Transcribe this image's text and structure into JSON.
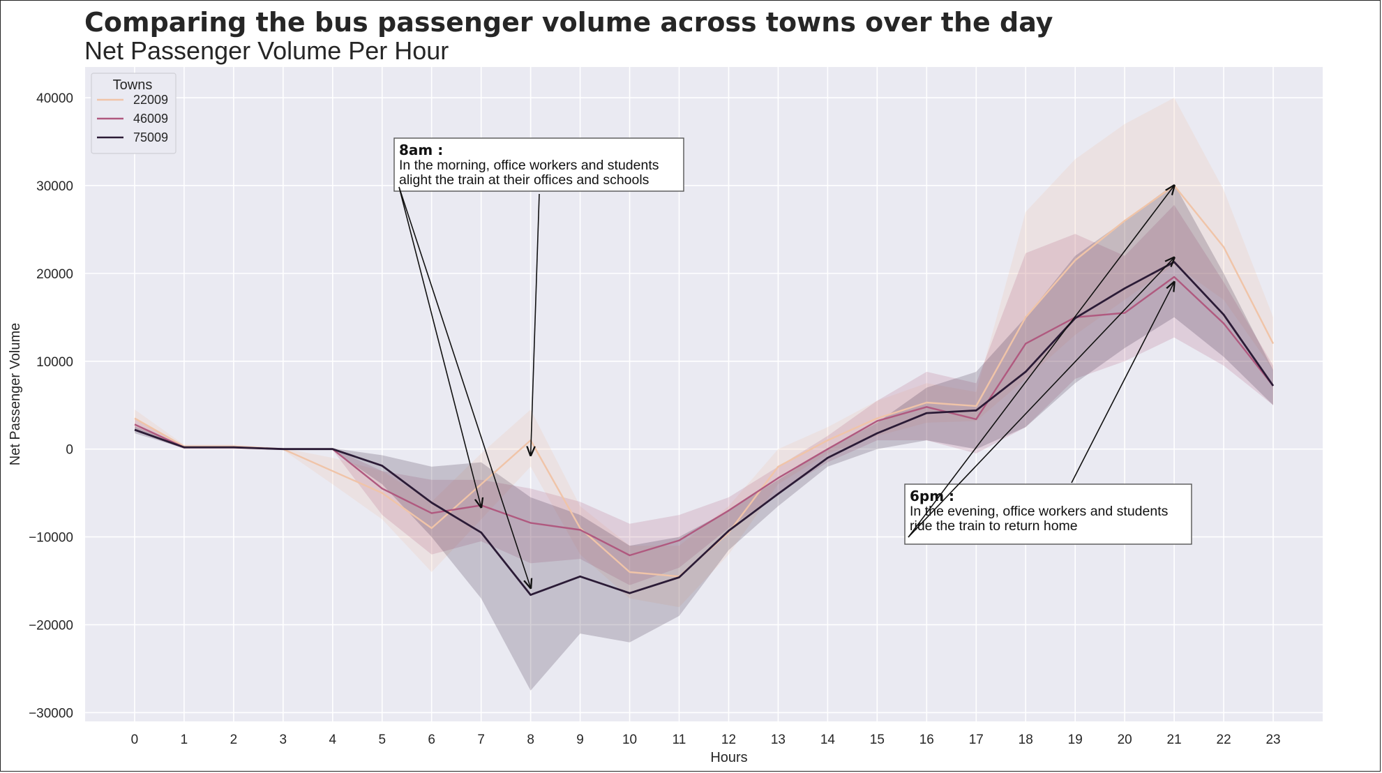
{
  "chart_data": {
    "type": "line",
    "title": "Comparing the bus passenger volume across towns over the day",
    "subtitle": "Net Passenger Volume Per Hour",
    "xlabel": "Hours",
    "ylabel": "Net Passenger Volume",
    "x": [
      0,
      1,
      2,
      3,
      4,
      5,
      6,
      7,
      8,
      9,
      10,
      11,
      12,
      13,
      14,
      15,
      16,
      17,
      18,
      19,
      20,
      21,
      22,
      23
    ],
    "xticks": [
      "0",
      "1",
      "2",
      "3",
      "4",
      "5",
      "6",
      "7",
      "8",
      "9",
      "10",
      "11",
      "12",
      "13",
      "14",
      "15",
      "16",
      "17",
      "18",
      "19",
      "20",
      "21",
      "22",
      "23"
    ],
    "yticks": [
      40000,
      30000,
      20000,
      10000,
      0,
      -10000,
      -20000,
      -30000
    ],
    "ytick_labels": [
      "40000",
      "30000",
      "20000",
      "10000",
      "0",
      "−10000",
      "−20000",
      "−30000"
    ],
    "ylim": [
      -31000,
      43500
    ],
    "xlim": [
      -1.0,
      24.0
    ],
    "grid": true,
    "legend": {
      "title": "Towns",
      "placement": "upper-left"
    },
    "series": [
      {
        "name": "22009",
        "color": "#f0c4a8",
        "values": [
          3500,
          300,
          300,
          0,
          -2500,
          -5000,
          -9000,
          -4000,
          1000,
          -9000,
          -14000,
          -14500,
          -9500,
          -2000,
          1000,
          3500,
          5300,
          4900,
          15000,
          21500,
          26000,
          30000,
          23000,
          12000
        ],
        "ci_upper": [
          4500,
          500,
          500,
          100,
          -1000,
          -2500,
          -6000,
          -500,
          4500,
          -6500,
          -11000,
          -11000,
          -6500,
          0,
          2500,
          5500,
          7500,
          6500,
          27000,
          33000,
          37000,
          40000,
          29500,
          15000
        ],
        "ci_lower": [
          2500,
          100,
          100,
          -100,
          -4000,
          -8000,
          -14000,
          -8000,
          -2000,
          -12000,
          -17000,
          -18000,
          -12000,
          -4000,
          -500,
          1500,
          3000,
          3200,
          8000,
          13000,
          17000,
          21000,
          17000,
          9000
        ]
      },
      {
        "name": "46009",
        "color": "#b0597f",
        "values": [
          2800,
          200,
          200,
          0,
          0,
          -4500,
          -7300,
          -6400,
          -8400,
          -9200,
          -12100,
          -10400,
          -7000,
          -3300,
          0,
          3200,
          4800,
          3400,
          12000,
          15000,
          15500,
          19600,
          14300,
          7200
        ],
        "ci_upper": [
          3500,
          400,
          400,
          100,
          100,
          -2500,
          -3500,
          -3500,
          -4500,
          -6000,
          -8500,
          -7500,
          -5500,
          -2000,
          1500,
          5500,
          8800,
          7500,
          22300,
          24500,
          22000,
          27800,
          19000,
          9500
        ],
        "ci_lower": [
          2100,
          0,
          0,
          -100,
          -100,
          -7500,
          -12000,
          -10500,
          -13000,
          -12500,
          -15500,
          -13500,
          -9000,
          -5000,
          -1500,
          1000,
          1000,
          -500,
          2500,
          8000,
          10000,
          12700,
          9500,
          5000
        ]
      },
      {
        "name": "75009",
        "color": "#2b1b36",
        "values": [
          2200,
          200,
          200,
          0,
          0,
          -1900,
          -6100,
          -9500,
          -16600,
          -14500,
          -16400,
          -14600,
          -9300,
          -5100,
          -1000,
          1800,
          4100,
          4400,
          8800,
          14900,
          18300,
          21300,
          15300,
          7200
        ],
        "ci_upper": [
          2600,
          300,
          300,
          100,
          100,
          -700,
          -2000,
          -1500,
          -5500,
          -7500,
          -11000,
          -10000,
          -7000,
          -3500,
          0,
          3000,
          7000,
          8800,
          15000,
          22000,
          26000,
          30200,
          20000,
          9000
        ],
        "ci_lower": [
          1800,
          100,
          100,
          -100,
          -100,
          -4000,
          -10000,
          -17000,
          -27500,
          -21000,
          -22000,
          -19000,
          -11500,
          -6500,
          -2000,
          0,
          1000,
          0,
          2500,
          7500,
          11500,
          15000,
          10500,
          5000
        ]
      }
    ],
    "annotations": [
      {
        "heading": "8am :",
        "lines": [
          "In the morning, office workers and students",
          "alight the train at their offices and schools"
        ],
        "arrow_targets": [
          [
            7,
            -6600
          ],
          [
            8,
            -15800
          ],
          [
            8,
            -700
          ]
        ]
      },
      {
        "heading": "6pm :",
        "lines": [
          "In the evening, office workers and students",
          "ride the train to return home"
        ],
        "arrow_targets": [
          [
            21,
            30000
          ],
          [
            21,
            21800
          ],
          [
            21,
            19000
          ]
        ]
      }
    ]
  }
}
